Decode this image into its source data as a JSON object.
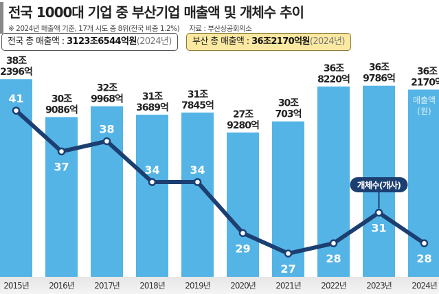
{
  "header": {
    "title": "전국 1000대 기업 중 부산기업 매출액 및 개체수 추이",
    "note": "※ 2024년 매출액 기준, 17개 시도 중 8위(전국 비중 1.2%)",
    "source": "자료 : 부산상공회의소"
  },
  "summary": {
    "national": {
      "label": "전국 총 매출액 : ",
      "value": "3123조6544억원",
      "year": "(2024년)"
    },
    "busan": {
      "label": "부산 총 매출액 : ",
      "value": "36조2170억원",
      "year": "(2024년)"
    }
  },
  "chart_data": {
    "type": "bar+line",
    "categories": [
      "2015년",
      "2016년",
      "2017년",
      "2018년",
      "2019년",
      "2020년",
      "2021년",
      "2022년",
      "2023년",
      "2024년"
    ],
    "series": [
      {
        "name": "매출액(원)",
        "type": "bar",
        "values_trillion_won": [
          38.2396,
          30.9086,
          32.9968,
          31.3689,
          31.7845,
          27.928,
          30.0703,
          36.822,
          36.9786,
          36.217
        ],
        "labels": [
          [
            "38조",
            "2396억"
          ],
          [
            "30조",
            "9086억"
          ],
          [
            "32조",
            "9968억"
          ],
          [
            "31조",
            "3689억"
          ],
          [
            "31조",
            "7845억"
          ],
          [
            "27조",
            "9280억"
          ],
          [
            "30조",
            "703억"
          ],
          [
            "36조",
            "8220억"
          ],
          [
            "36조",
            "9786억"
          ],
          [
            "36조",
            "2170억"
          ]
        ],
        "color": "#55b4e6"
      },
      {
        "name": "개체수(개사)",
        "type": "line",
        "values": [
          41,
          37,
          38,
          34,
          34,
          29,
          27,
          28,
          31,
          28
        ],
        "color": "#1c3f72"
      }
    ],
    "bar_series_label": [
      "매출액",
      "(원)"
    ],
    "line_series_label": "개체수(개사)",
    "grid": false,
    "legend": "inline"
  }
}
